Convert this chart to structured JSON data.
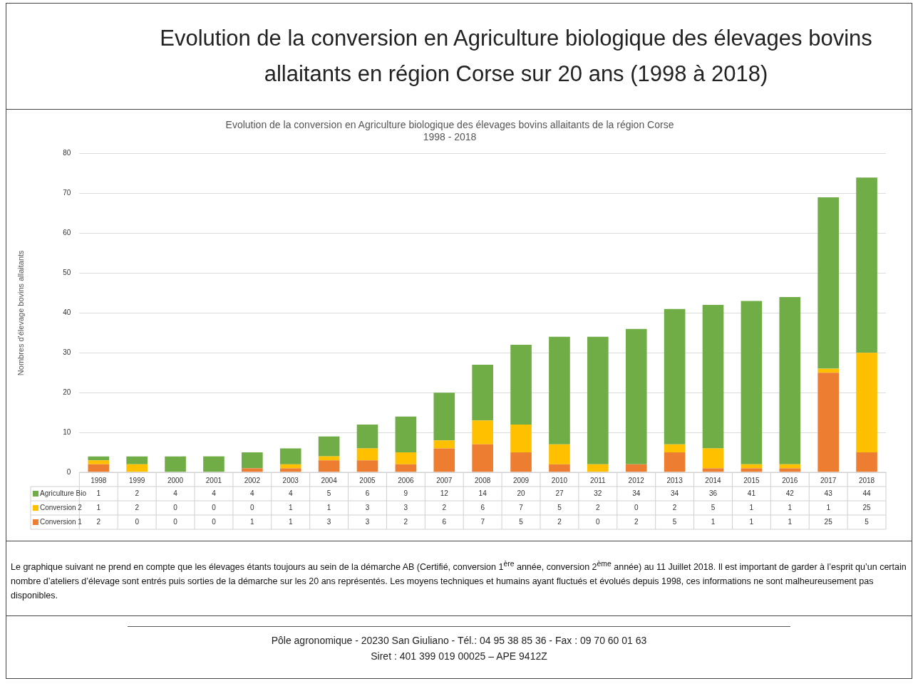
{
  "chart_data": {
    "type": "bar",
    "title": "Evolution de la conversion en Agriculture biologique des élevages bovins allaitants en région Corse sur 20 ans (1998 à 2018)",
    "subtitle": "Evolution de la conversion en Agriculture biologique des élevages bovins allaitants de la région Corse\n1998 - 2018",
    "ylabel": "Nombres d'élevage bovins allaitants",
    "categories": [
      "1998",
      "1999",
      "2000",
      "2001",
      "2002",
      "2003",
      "2004",
      "2005",
      "2006",
      "2007",
      "2008",
      "2009",
      "2010",
      "2011",
      "2012",
      "2013",
      "2014",
      "2015",
      "2016",
      "2017",
      "2018"
    ],
    "series": [
      {
        "name": "Conversion 1",
        "color": "#ed7d31",
        "values": [
          2,
          0,
          0,
          0,
          1,
          1,
          3,
          3,
          2,
          6,
          7,
          5,
          2,
          0,
          2,
          5,
          1,
          1,
          1,
          25,
          5
        ]
      },
      {
        "name": "Conversion 2",
        "color": "#ffc000",
        "values": [
          1,
          2,
          0,
          0,
          0,
          1,
          1,
          3,
          3,
          2,
          6,
          7,
          5,
          2,
          0,
          2,
          5,
          1,
          1,
          1,
          25
        ]
      },
      {
        "name": "Agriculture Bio",
        "color": "#70ad47",
        "values": [
          1,
          2,
          4,
          4,
          4,
          4,
          5,
          6,
          9,
          12,
          14,
          20,
          27,
          32,
          34,
          34,
          36,
          41,
          42,
          43,
          44
        ]
      }
    ],
    "stacked": true,
    "ylim": [
      0,
      80
    ],
    "yticks": [
      0,
      10,
      20,
      30,
      40,
      50,
      60,
      70,
      80
    ],
    "grid": "y",
    "legend": "bottom",
    "data_labels": true,
    "annotations": [
      "Le graphique suivant ne prend en compte que les élevages étants toujours au sein de la démarche AB (Certifié, conversion 1$^{ère}$ année, conversion 2$^{ème}$ année) au 11 Juillet 2018. Il est important de garder à l’esprit qu’un certain nombre d’ateliers d’élevage sont entrés puis sorties de la démarche sur les 20 ans représentés. Les moyens techniques et humains ayant fluctués et évolués depuis 1998, ces informations ne sont malheureusement pas disponibles.",
      "Pôle agronomique - 20230 San Giuliano - Tél.: 04 95 38 85 36  -  Fax : 09 70 60 01 63",
      "Siret : 401 399 019 00025  – APE 9412Z"
    ]
  }
}
